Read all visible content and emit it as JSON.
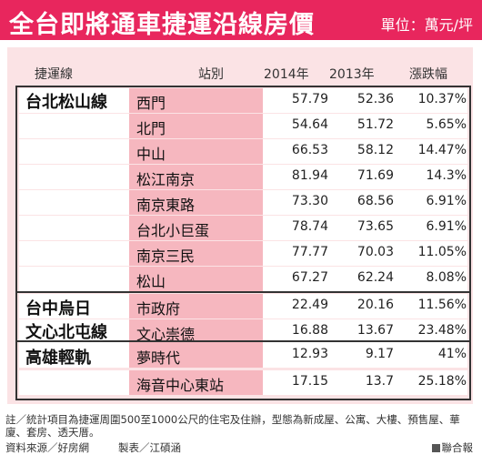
{
  "header": {
    "title": "全台即將通車捷運沿線房價",
    "unit": "單位：萬元/坪"
  },
  "columns": {
    "line": "捷運線",
    "station": "站別",
    "y2014": "2014年",
    "y2013": "2013年",
    "change": "漲跌幅"
  },
  "lines": [
    {
      "name": "台北松山線"
    },
    {
      "name": "台中烏日"
    },
    {
      "name": "文心北屯線"
    },
    {
      "name": "高雄輕軌"
    }
  ],
  "chart_data": {
    "type": "table",
    "columns": [
      "捷運線",
      "站別",
      "2014年",
      "2013年",
      "漲跌幅"
    ],
    "rows": [
      {
        "line": "台北松山線",
        "station": "西門",
        "y2014": "57.79",
        "y2013": "52.36",
        "change": "10.37%"
      },
      {
        "line": "台北松山線",
        "station": "北門",
        "y2014": "54.64",
        "y2013": "51.72",
        "change": "5.65%"
      },
      {
        "line": "台北松山線",
        "station": "中山",
        "y2014": "66.53",
        "y2013": "58.12",
        "change": "14.47%"
      },
      {
        "line": "台北松山線",
        "station": "松江南京",
        "y2014": "81.94",
        "y2013": "71.69",
        "change": "14.3%"
      },
      {
        "line": "台北松山線",
        "station": "南京東路",
        "y2014": "73.30",
        "y2013": "68.56",
        "change": "6.91%"
      },
      {
        "line": "台北松山線",
        "station": "台北小巨蛋",
        "y2014": "78.74",
        "y2013": "73.65",
        "change": "6.91%"
      },
      {
        "line": "台北松山線",
        "station": "南京三民",
        "y2014": "77.77",
        "y2013": "70.03",
        "change": "11.05%"
      },
      {
        "line": "台北松山線",
        "station": "松山",
        "y2014": "67.27",
        "y2013": "62.24",
        "change": "8.08%"
      },
      {
        "line": "台中烏日文心北屯線",
        "station": "市政府",
        "y2014": "22.49",
        "y2013": "20.16",
        "change": "11.56%"
      },
      {
        "line": "台中烏日文心北屯線",
        "station": "文心崇德",
        "y2014": "16.88",
        "y2013": "13.67",
        "change": "23.48%"
      },
      {
        "line": "高雄輕軌",
        "station": "夢時代",
        "y2014": "12.93",
        "y2013": "9.17",
        "change": "41%"
      },
      {
        "line": "高雄輕軌",
        "station": "海音中心東站",
        "y2014": "17.15",
        "y2013": "13.7",
        "change": "25.18%"
      }
    ]
  },
  "footer": {
    "note": "註／統計項目為捷運周圍500至1000公尺的住宅及住辦，型態為新成屋、公寓、大樓、預售屋、華廈、套房、透天厝。",
    "source": "資料來源／好房網",
    "credit": "製表／江碩涵",
    "brand": "聯合報"
  },
  "colors": {
    "header_bg": "#e8265d",
    "panel_bg": "#fbe3e5",
    "station_cell": "#f6b7bf"
  }
}
